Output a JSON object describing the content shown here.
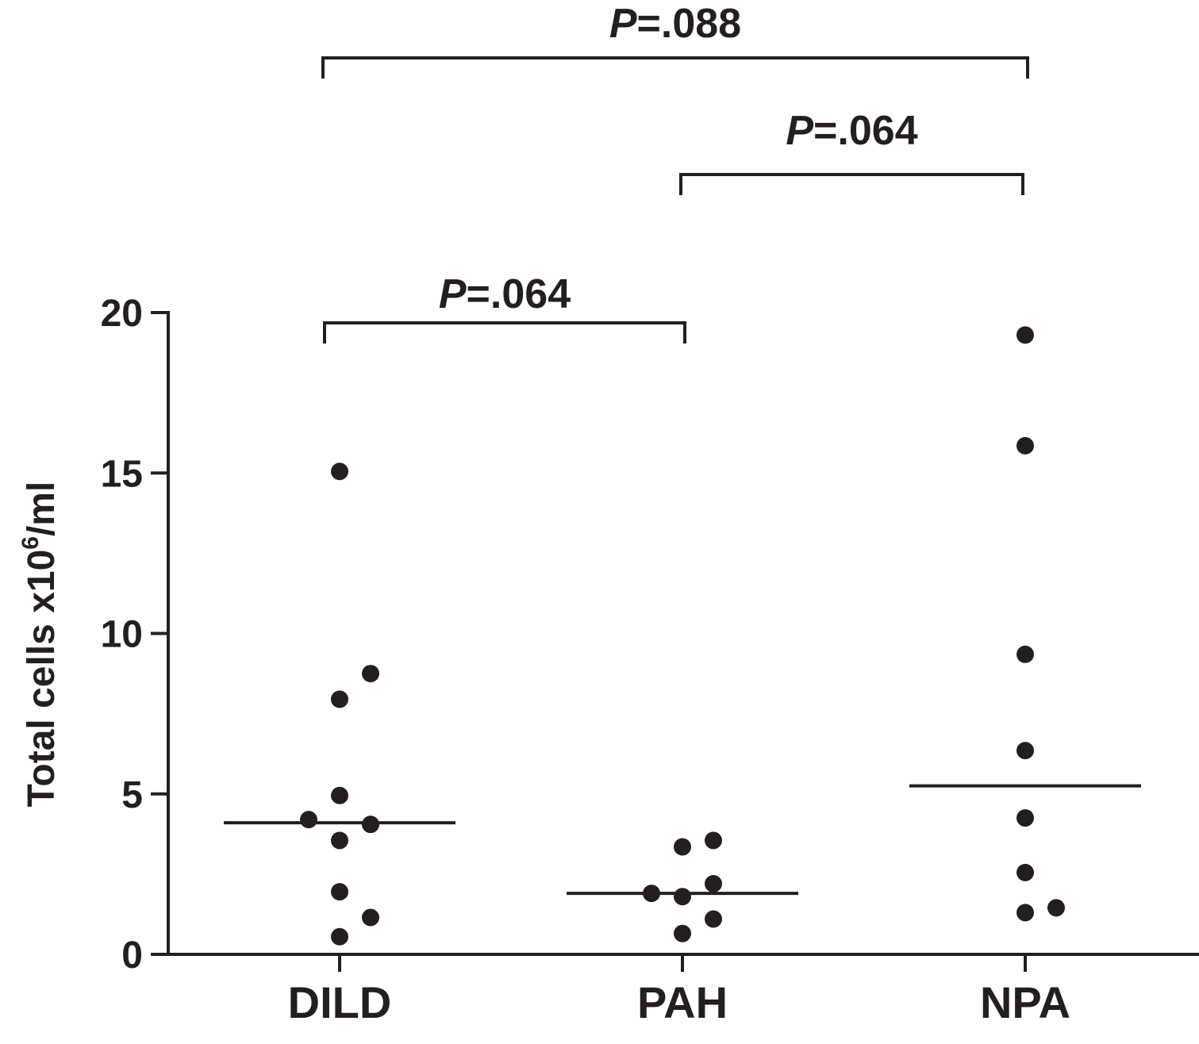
{
  "chart_data": {
    "type": "scatter",
    "title": "",
    "xlabel": "",
    "ylabel": {
      "prefix": "Total cells x10",
      "superscript": "6",
      "suffix": "/ml"
    },
    "ylim": [
      0,
      20
    ],
    "yticks": [
      "0",
      "5",
      "10",
      "15",
      "20"
    ],
    "grid": false,
    "legend": "none",
    "categories": [
      "DILD",
      "PAH",
      "NPA"
    ],
    "colors": {
      "ink": "#231f20"
    },
    "series": [
      {
        "category": "DILD",
        "median": 4.1,
        "points": [
          {
            "offset": 0,
            "y": 15.05
          },
          {
            "offset": 1,
            "y": 8.75
          },
          {
            "offset": 0,
            "y": 7.95
          },
          {
            "offset": 0,
            "y": 4.95
          },
          {
            "offset": -1,
            "y": 4.2
          },
          {
            "offset": 1,
            "y": 4.05
          },
          {
            "offset": 0,
            "y": 3.55
          },
          {
            "offset": 0,
            "y": 1.95
          },
          {
            "offset": 1,
            "y": 1.15
          },
          {
            "offset": 0,
            "y": 0.55
          }
        ]
      },
      {
        "category": "PAH",
        "median": 1.9,
        "points": [
          {
            "offset": 1,
            "y": 3.55
          },
          {
            "offset": 0,
            "y": 3.35
          },
          {
            "offset": 1,
            "y": 2.2
          },
          {
            "offset": -1,
            "y": 1.9
          },
          {
            "offset": 0,
            "y": 1.8
          },
          {
            "offset": 1,
            "y": 1.1
          },
          {
            "offset": 0,
            "y": 0.65
          }
        ]
      },
      {
        "category": "NPA",
        "median": 5.25,
        "points": [
          {
            "offset": 0,
            "y": 19.3
          },
          {
            "offset": 0,
            "y": 15.85
          },
          {
            "offset": 0,
            "y": 9.35
          },
          {
            "offset": 0,
            "y": 6.35
          },
          {
            "offset": 0,
            "y": 4.25
          },
          {
            "offset": 0,
            "y": 2.55
          },
          {
            "offset": 1,
            "y": 1.45
          },
          {
            "offset": 0,
            "y": 1.3
          }
        ]
      }
    ],
    "comparisons": [
      {
        "from": "DILD",
        "to": "PAH",
        "p_italic": "P",
        "p_value": "=.064",
        "level": 1
      },
      {
        "from": "PAH",
        "to": "NPA",
        "p_italic": "P",
        "p_value": "=.064",
        "level": 2
      },
      {
        "from": "DILD",
        "to": "NPA",
        "p_italic": "P",
        "p_value": "=.088",
        "level": 3
      }
    ]
  }
}
